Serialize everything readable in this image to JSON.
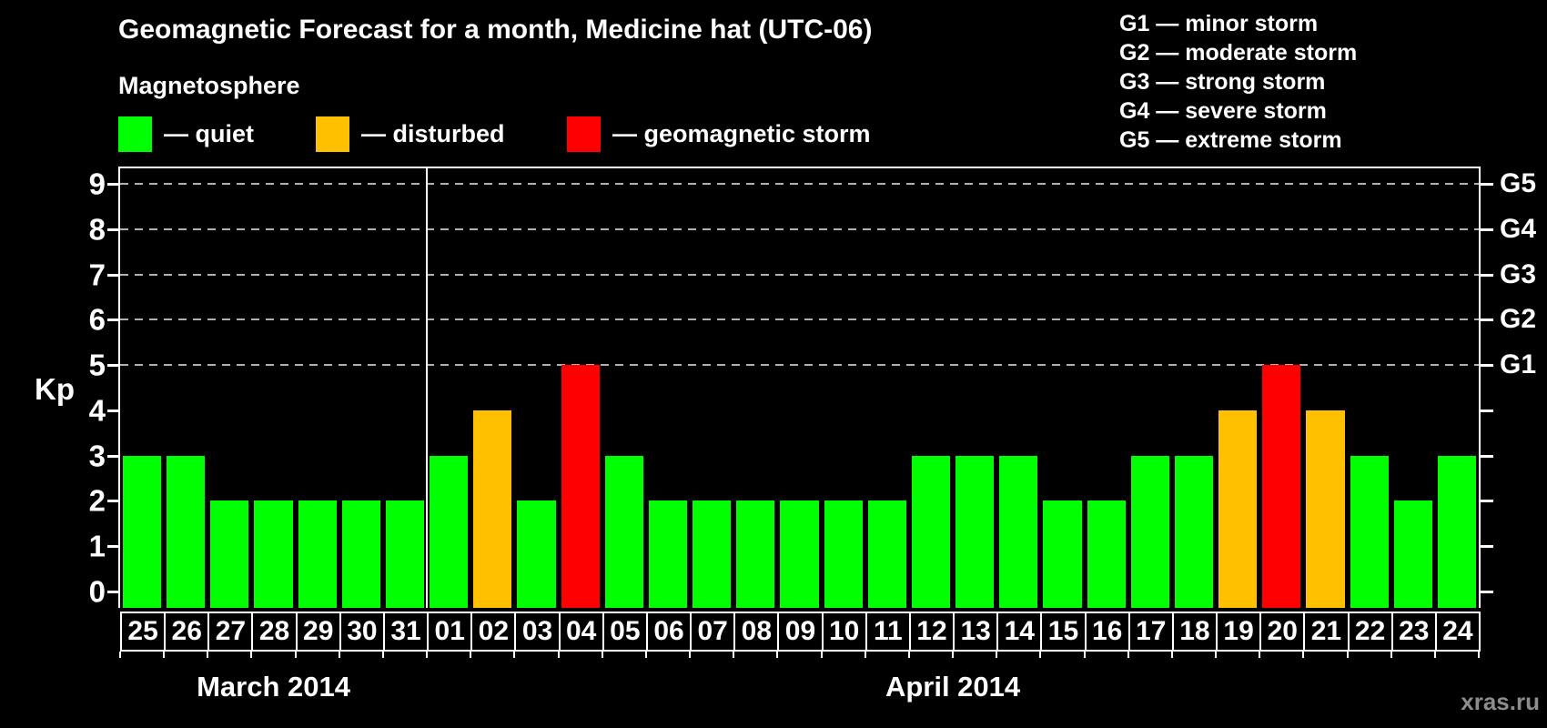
{
  "header": {
    "title": "Geomagnetic Forecast for a month, Medicine hat (UTC-06)",
    "subtitle": "Magnetosphere",
    "watermark": "xras.ru"
  },
  "legend": {
    "items": [
      {
        "status": "quiet",
        "label": "— quiet"
      },
      {
        "status": "disturbed",
        "label": "— disturbed"
      },
      {
        "status": "storm",
        "label": "— geomagnetic storm"
      }
    ]
  },
  "g_scale_legend": {
    "items": [
      "G1 — minor storm",
      "G2 — moderate storm",
      "G3 — strong storm",
      "G4 — severe storm",
      "G5 — extreme storm"
    ]
  },
  "axes": {
    "left_label": "Kp",
    "left_ticks": [
      0,
      1,
      2,
      3,
      4,
      5,
      6,
      7,
      8,
      9
    ],
    "right_ticks": [
      {
        "kp": 5,
        "label": "G1"
      },
      {
        "kp": 6,
        "label": "G2"
      },
      {
        "kp": 7,
        "label": "G3"
      },
      {
        "kp": 8,
        "label": "G4"
      },
      {
        "kp": 9,
        "label": "G5"
      }
    ]
  },
  "chart_data": {
    "type": "bar",
    "title": "Geomagnetic Forecast for a month, Medicine hat (UTC-06)",
    "ylabel": "Kp",
    "ylim": [
      0,
      9.4
    ],
    "grid": "horizontal dashed lines at Kp 5-9 (G1-G5)",
    "legend_position": "top",
    "months": [
      {
        "label": "March 2014",
        "days": 7
      },
      {
        "label": "April 2014",
        "days": 24
      }
    ],
    "categories": [
      "25",
      "26",
      "27",
      "28",
      "29",
      "30",
      "31",
      "01",
      "02",
      "03",
      "04",
      "05",
      "06",
      "07",
      "08",
      "09",
      "10",
      "11",
      "12",
      "13",
      "14",
      "15",
      "16",
      "17",
      "18",
      "19",
      "20",
      "21",
      "22",
      "23",
      "24"
    ],
    "values": [
      3,
      3,
      2,
      2,
      2,
      2,
      2,
      3,
      4,
      2,
      5,
      3,
      2,
      2,
      2,
      2,
      2,
      2,
      3,
      3,
      3,
      2,
      2,
      3,
      3,
      4,
      5,
      4,
      3,
      2,
      3
    ],
    "statuses": [
      "quiet",
      "quiet",
      "quiet",
      "quiet",
      "quiet",
      "quiet",
      "quiet",
      "quiet",
      "disturbed",
      "quiet",
      "storm",
      "quiet",
      "quiet",
      "quiet",
      "quiet",
      "quiet",
      "quiet",
      "quiet",
      "quiet",
      "quiet",
      "quiet",
      "quiet",
      "quiet",
      "quiet",
      "quiet",
      "disturbed",
      "storm",
      "disturbed",
      "quiet",
      "quiet",
      "quiet"
    ]
  },
  "colors": {
    "quiet": "#00ff00",
    "disturbed": "#ffc000",
    "storm": "#ff0000",
    "axis": "#ffffff",
    "grid": "#b0b0b0",
    "watermark": "#8c8c8c",
    "background": "#000000"
  }
}
